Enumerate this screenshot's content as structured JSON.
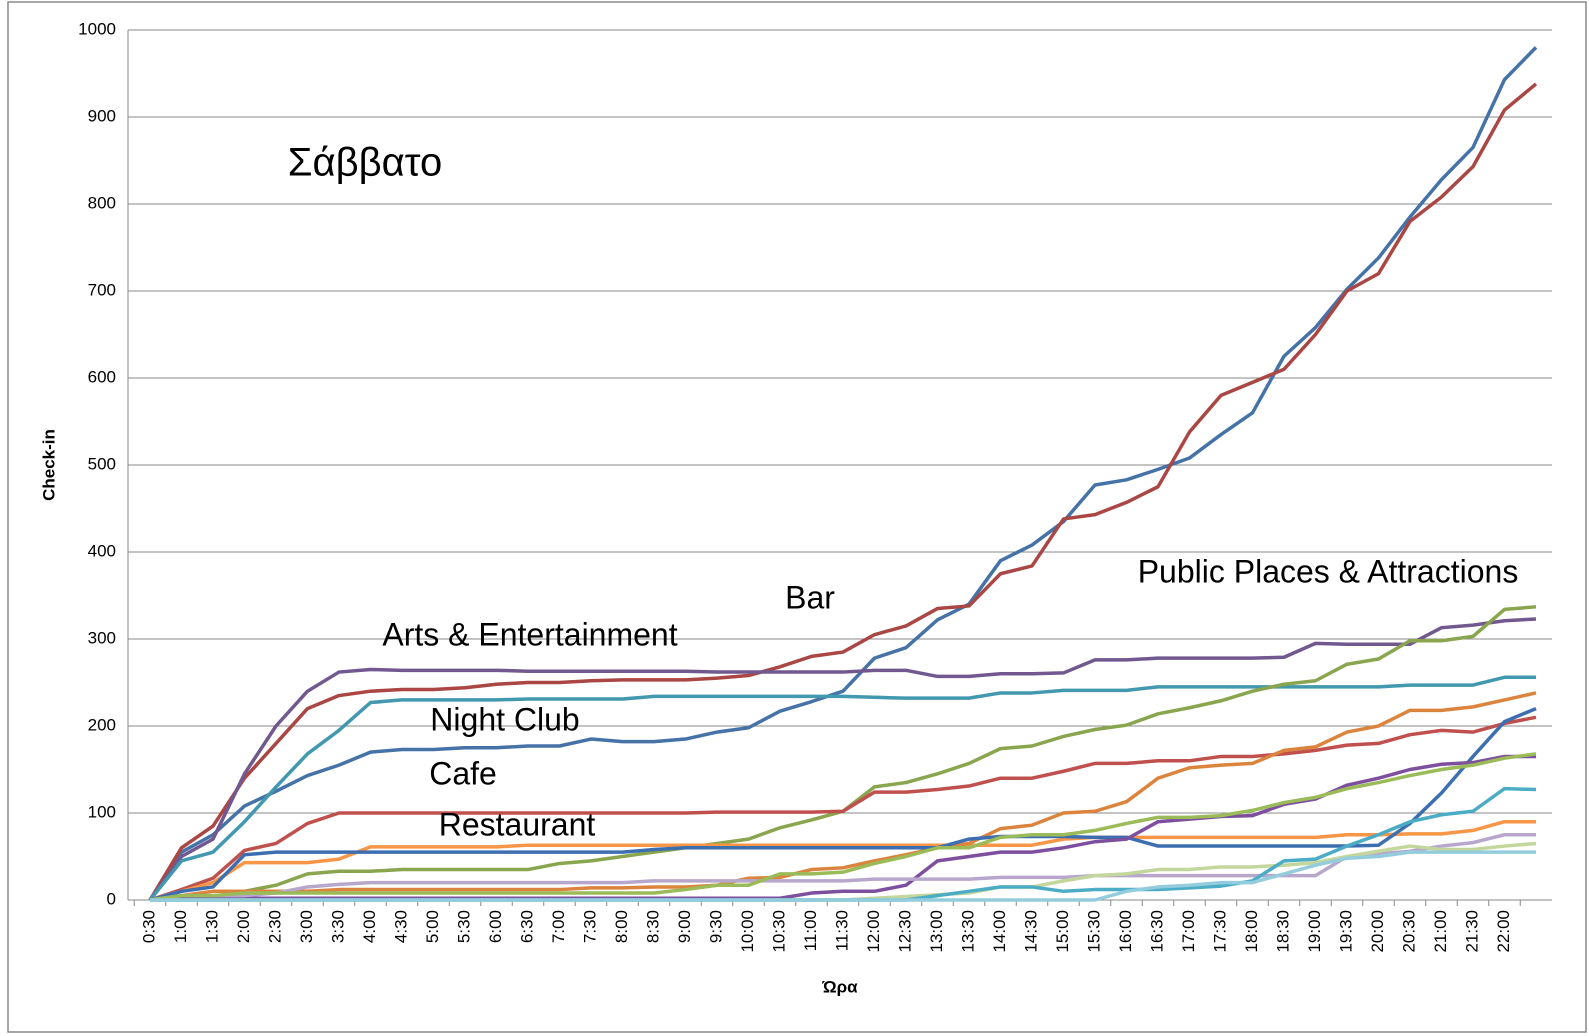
{
  "chart_data": {
    "type": "line",
    "annotations": [
      "Σάββατο",
      "Bar",
      "Arts & Entertainment",
      "Night Club",
      "Cafe",
      "Restaurant",
      "Public Places & Attractions"
    ],
    "x_label": "Ώρα",
    "y_label": "Check-in",
    "categories": [
      "0:30",
      "1:00",
      "1:30",
      "2:00",
      "2:30",
      "3:00",
      "3:30",
      "4:00",
      "4:30",
      "5:00",
      "5:30",
      "6:00",
      "6:30",
      "7:00",
      "7:30",
      "8:00",
      "8:30",
      "9:00",
      "9:30",
      "10:00",
      "10:30",
      "11:00",
      "11:30",
      "12:00",
      "12:30",
      "13:00",
      "13:30",
      "14:00",
      "14:30",
      "15:00",
      "15:30",
      "16:00",
      "16:30",
      "17:00",
      "17:30",
      "18:00",
      "18:30",
      "19:00",
      "19:30",
      "20:00",
      "20:30",
      "21:00",
      "21:30",
      "22:00",
      null
    ],
    "ylim": [
      0,
      1000
    ],
    "yticks": [
      0,
      100,
      200,
      300,
      400,
      500,
      600,
      700,
      800,
      900,
      1000
    ],
    "grid": true,
    "series": [
      {
        "color": "#4572a7",
        "values": [
          0,
          55,
          75,
          108,
          125,
          143,
          155,
          170,
          173,
          173,
          175,
          175,
          177,
          177,
          185,
          182,
          182,
          185,
          193,
          198,
          217,
          228,
          240,
          278,
          290,
          322,
          340,
          390,
          408,
          435,
          477,
          483,
          495,
          508,
          535,
          560,
          625,
          658,
          702,
          738,
          785,
          828,
          865,
          943,
          980
        ]
      },
      {
        "color": "#aa4643",
        "values": [
          0,
          60,
          85,
          140,
          180,
          220,
          235,
          240,
          242,
          242,
          244,
          248,
          250,
          250,
          252,
          253,
          253,
          253,
          255,
          258,
          268,
          280,
          285,
          305,
          315,
          335,
          338,
          375,
          384,
          438,
          443,
          457,
          475,
          538,
          580,
          595,
          610,
          650,
          700,
          720,
          780,
          808,
          843,
          908,
          938
        ]
      },
      {
        "color": "#71588f",
        "values": [
          0,
          50,
          70,
          145,
          200,
          240,
          262,
          265,
          264,
          264,
          264,
          264,
          263,
          263,
          263,
          263,
          263,
          263,
          262,
          262,
          262,
          262,
          262,
          264,
          264,
          257,
          257,
          260,
          260,
          261,
          276,
          276,
          278,
          278,
          278,
          278,
          279,
          295,
          294,
          294,
          294,
          313,
          316,
          321,
          323
        ]
      },
      {
        "color": "#4198af",
        "values": [
          0,
          45,
          55,
          90,
          130,
          168,
          195,
          227,
          230,
          230,
          230,
          230,
          231,
          231,
          231,
          231,
          234,
          234,
          234,
          234,
          234,
          234,
          234,
          233,
          232,
          232,
          232,
          238,
          238,
          241,
          241,
          241,
          245,
          245,
          245,
          245,
          245,
          245,
          245,
          245,
          247,
          247,
          247,
          256,
          256
        ]
      },
      {
        "color": "#89a54e",
        "values": [
          0,
          2,
          3,
          10,
          17,
          30,
          33,
          33,
          35,
          35,
          35,
          35,
          35,
          42,
          45,
          50,
          55,
          60,
          65,
          70,
          83,
          92,
          102,
          130,
          135,
          145,
          157,
          174,
          177,
          188,
          196,
          201,
          214,
          221,
          229,
          240,
          248,
          252,
          271,
          277,
          298,
          298,
          303,
          334,
          337
        ]
      },
      {
        "color": "#c0504d",
        "values": [
          0,
          12,
          25,
          57,
          65,
          88,
          100,
          100,
          100,
          100,
          100,
          100,
          100,
          100,
          100,
          100,
          100,
          100,
          101,
          101,
          101,
          101,
          102,
          124,
          124,
          127,
          131,
          140,
          140,
          148,
          157,
          157,
          160,
          160,
          165,
          165,
          168,
          172,
          178,
          180,
          190,
          195,
          193,
          203,
          210
        ]
      },
      {
        "color": "#f79646",
        "values": [
          0,
          10,
          20,
          43,
          43,
          43,
          47,
          61,
          61,
          61,
          61,
          61,
          63,
          63,
          63,
          63,
          63,
          63,
          63,
          63,
          63,
          63,
          63,
          63,
          63,
          63,
          63,
          63,
          63,
          70,
          72,
          72,
          72,
          72,
          72,
          72,
          72,
          72,
          75,
          75,
          76,
          76,
          80,
          90,
          90
        ]
      },
      {
        "color": "#db843d",
        "values": [
          0,
          5,
          10,
          10,
          10,
          10,
          12,
          12,
          12,
          12,
          12,
          12,
          12,
          12,
          14,
          14,
          15,
          15,
          17,
          25,
          26,
          35,
          37,
          45,
          52,
          60,
          65,
          82,
          86,
          100,
          102,
          113,
          140,
          152,
          155,
          157,
          172,
          176,
          193,
          200,
          218,
          218,
          222,
          230,
          238
        ]
      },
      {
        "color": "#3d6fb0",
        "values": [
          0,
          10,
          15,
          52,
          55,
          55,
          55,
          55,
          55,
          55,
          55,
          55,
          55,
          55,
          55,
          55,
          58,
          60,
          60,
          60,
          60,
          60,
          60,
          60,
          60,
          60,
          70,
          73,
          73,
          73,
          72,
          72,
          62,
          62,
          62,
          62,
          62,
          62,
          62,
          63,
          88,
          123,
          165,
          205,
          220
        ]
      },
      {
        "color": "#7d4f9e",
        "values": [
          0,
          2,
          2,
          2,
          2,
          2,
          2,
          2,
          2,
          2,
          2,
          2,
          2,
          2,
          2,
          2,
          2,
          2,
          2,
          2,
          2,
          8,
          10,
          10,
          17,
          45,
          50,
          55,
          55,
          60,
          67,
          70,
          90,
          93,
          96,
          97,
          110,
          116,
          132,
          140,
          150,
          156,
          158,
          165,
          165
        ]
      },
      {
        "color": "#b7a7cc",
        "values": [
          0,
          5,
          5,
          5,
          8,
          15,
          18,
          20,
          20,
          20,
          20,
          20,
          20,
          20,
          20,
          20,
          22,
          22,
          22,
          22,
          22,
          22,
          22,
          24,
          24,
          24,
          24,
          26,
          26,
          26,
          28,
          28,
          28,
          28,
          28,
          28,
          28,
          28,
          50,
          53,
          56,
          62,
          66,
          75,
          75
        ]
      },
      {
        "color": "#c3d69b",
        "values": [
          0,
          0,
          0,
          0,
          0,
          0,
          0,
          0,
          0,
          0,
          0,
          0,
          0,
          0,
          0,
          0,
          0,
          0,
          0,
          0,
          0,
          0,
          0,
          2,
          4,
          6,
          8,
          15,
          15,
          22,
          28,
          30,
          35,
          35,
          38,
          38,
          40,
          43,
          50,
          56,
          62,
          58,
          58,
          62,
          65
        ]
      },
      {
        "color": "#4bacc6",
        "values": [
          0,
          0,
          0,
          0,
          0,
          0,
          0,
          0,
          0,
          0,
          0,
          0,
          0,
          0,
          0,
          0,
          0,
          0,
          0,
          0,
          0,
          0,
          0,
          0,
          0,
          5,
          10,
          15,
          15,
          10,
          12,
          12,
          12,
          14,
          16,
          22,
          45,
          47,
          62,
          75,
          90,
          98,
          102,
          128,
          127
        ]
      },
      {
        "color": "#9bbb59",
        "values": [
          0,
          5,
          5,
          8,
          8,
          8,
          8,
          8,
          8,
          8,
          8,
          8,
          8,
          8,
          8,
          8,
          8,
          12,
          17,
          17,
          30,
          30,
          32,
          42,
          50,
          60,
          60,
          72,
          75,
          75,
          80,
          88,
          95,
          95,
          97,
          103,
          112,
          118,
          128,
          135,
          143,
          150,
          155,
          163,
          168
        ]
      },
      {
        "color": "#93cddd",
        "values": [
          0,
          0,
          0,
          0,
          0,
          0,
          0,
          0,
          0,
          0,
          0,
          0,
          0,
          0,
          0,
          0,
          0,
          0,
          0,
          0,
          0,
          0,
          0,
          0,
          0,
          0,
          0,
          0,
          0,
          0,
          0,
          10,
          15,
          17,
          20,
          20,
          30,
          40,
          48,
          50,
          55,
          55,
          55,
          55,
          55
        ]
      }
    ]
  }
}
